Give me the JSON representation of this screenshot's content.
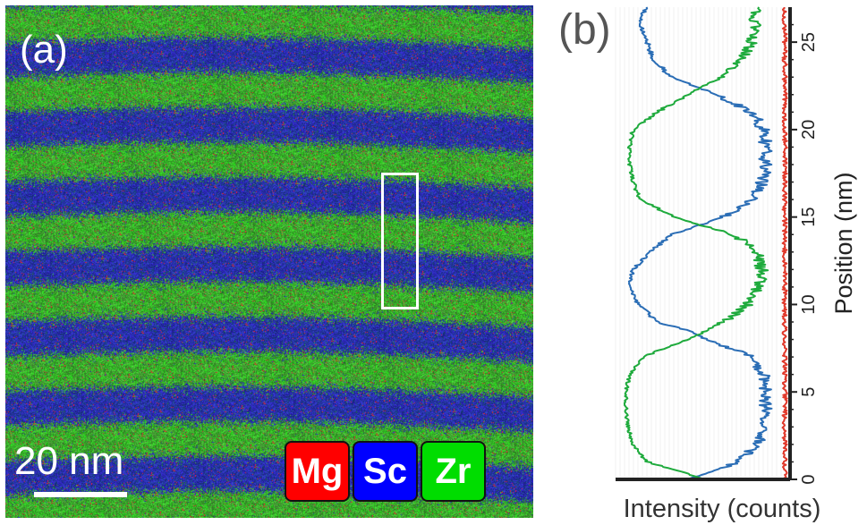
{
  "panel_a": {
    "label": "(a)",
    "scale_bar_label": "20 nm",
    "legend": [
      {
        "label": "Mg",
        "color": "#ff0000"
      },
      {
        "label": "Sc",
        "color": "#0000ff"
      },
      {
        "label": "Zr",
        "color": "#00dd00"
      }
    ]
  },
  "panel_b": {
    "label": "(b)"
  },
  "chart_data": {
    "type": "line",
    "orientation": "vertical",
    "xlabel": "Intensity (counts)",
    "ylabel": "Position (nm)",
    "ylim": [
      0,
      27
    ],
    "yticks": [
      0,
      5,
      10,
      15,
      20,
      25
    ],
    "series": [
      {
        "element": "Sc",
        "color": "#2a6db5",
        "position": [
          0,
          1,
          2,
          3,
          4,
          5,
          6,
          7,
          7.5,
          8,
          8.5,
          9,
          10,
          11,
          12,
          13,
          14,
          14.5,
          15,
          16,
          17,
          18,
          19,
          20,
          21,
          22,
          22.5,
          23,
          24,
          25,
          26,
          27
        ],
        "intensity": [
          0.42,
          0.7,
          0.82,
          0.85,
          0.86,
          0.86,
          0.85,
          0.78,
          0.66,
          0.52,
          0.42,
          0.24,
          0.13,
          0.08,
          0.1,
          0.2,
          0.32,
          0.47,
          0.62,
          0.78,
          0.84,
          0.86,
          0.86,
          0.85,
          0.78,
          0.58,
          0.45,
          0.32,
          0.22,
          0.18,
          0.14,
          0.17
        ]
      },
      {
        "element": "Zr",
        "color": "#1eaa3c",
        "position": [
          0,
          0.5,
          1,
          2,
          3,
          4,
          5,
          6,
          7,
          7.5,
          8,
          8.5,
          9,
          10,
          11,
          12,
          13,
          14,
          14.5,
          15,
          16,
          17,
          18,
          19,
          20,
          21,
          22,
          22.5,
          23,
          24,
          25,
          26,
          27
        ],
        "intensity": [
          0.5,
          0.36,
          0.18,
          0.1,
          0.07,
          0.06,
          0.06,
          0.08,
          0.16,
          0.28,
          0.42,
          0.52,
          0.62,
          0.76,
          0.82,
          0.84,
          0.81,
          0.68,
          0.5,
          0.34,
          0.14,
          0.1,
          0.08,
          0.08,
          0.1,
          0.24,
          0.42,
          0.5,
          0.62,
          0.72,
          0.78,
          0.8,
          0.8
        ]
      },
      {
        "element": "Mg",
        "color": "#e0382a",
        "position": [
          0,
          27
        ],
        "intensity": [
          0.97,
          0.97
        ]
      }
    ]
  }
}
